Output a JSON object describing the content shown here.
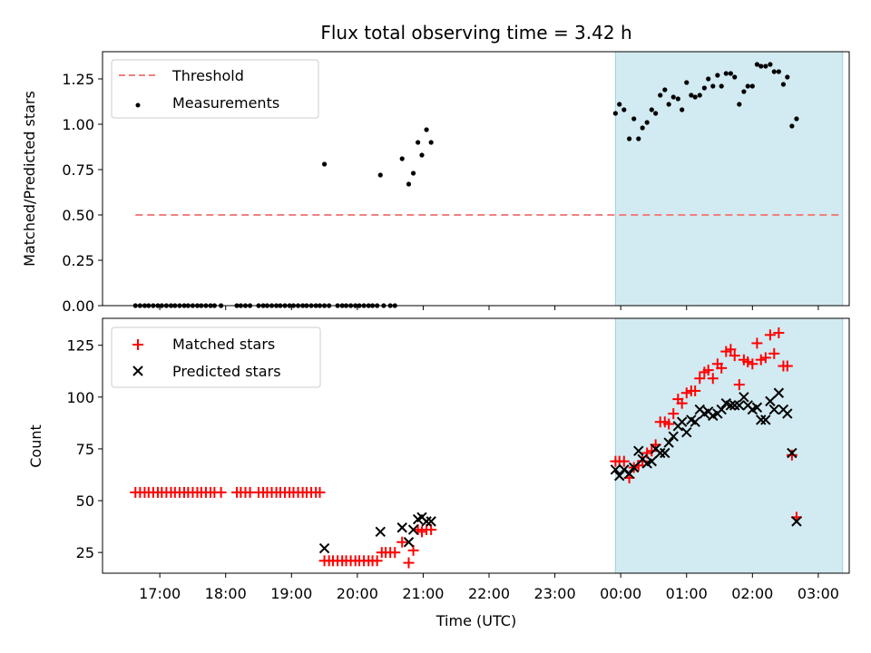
{
  "chart_data": [
    {
      "type": "scatter",
      "title": "Flux total observing time = 3.42 h",
      "xlabel": "",
      "ylabel": "Matched/Predicted stars",
      "xlim": [
        -0.87,
        10.47
      ],
      "ylim": [
        0,
        1.4
      ],
      "yticks": [
        0.0,
        0.25,
        0.5,
        0.75,
        1.0,
        1.25
      ],
      "ytick_labels": [
        "0.00",
        "0.25",
        "0.50",
        "0.75",
        "1.00",
        "1.25"
      ],
      "legend_position": "top-left",
      "highlight_span": {
        "start": 6.92,
        "end": 10.37,
        "color": "#add8e6"
      },
      "series": [
        {
          "name": "Threshold",
          "style": "dashed-line",
          "color": "#f08080",
          "points": [
            [
              -0.37,
              0.5
            ],
            [
              10.37,
              0.5
            ]
          ]
        },
        {
          "name": "Measurements",
          "style": "dot",
          "color": "#000000",
          "points": [
            [
              -0.37,
              0
            ],
            [
              -0.3,
              0
            ],
            [
              -0.23,
              0
            ],
            [
              -0.17,
              0
            ],
            [
              -0.1,
              0
            ],
            [
              -0.03,
              0
            ],
            [
              0.03,
              0
            ],
            [
              0.1,
              0
            ],
            [
              0.17,
              0
            ],
            [
              0.23,
              0
            ],
            [
              0.3,
              0
            ],
            [
              0.37,
              0
            ],
            [
              0.43,
              0
            ],
            [
              0.5,
              0
            ],
            [
              0.57,
              0
            ],
            [
              0.63,
              0
            ],
            [
              0.7,
              0
            ],
            [
              0.77,
              0
            ],
            [
              0.83,
              0
            ],
            [
              0.93,
              0
            ],
            [
              1.17,
              0
            ],
            [
              1.23,
              0
            ],
            [
              1.3,
              0
            ],
            [
              1.37,
              0
            ],
            [
              1.5,
              0
            ],
            [
              1.57,
              0
            ],
            [
              1.63,
              0
            ],
            [
              1.7,
              0
            ],
            [
              1.77,
              0
            ],
            [
              1.83,
              0
            ],
            [
              1.9,
              0
            ],
            [
              1.97,
              0
            ],
            [
              2.03,
              0
            ],
            [
              2.1,
              0
            ],
            [
              2.17,
              0
            ],
            [
              2.23,
              0
            ],
            [
              2.3,
              0
            ],
            [
              2.37,
              0
            ],
            [
              2.43,
              0
            ],
            [
              2.5,
              0
            ],
            [
              2.57,
              0
            ],
            [
              2.7,
              0
            ],
            [
              2.77,
              0
            ],
            [
              2.83,
              0
            ],
            [
              2.9,
              0
            ],
            [
              2.97,
              0
            ],
            [
              3.03,
              0
            ],
            [
              3.1,
              0
            ],
            [
              3.17,
              0
            ],
            [
              3.23,
              0
            ],
            [
              3.3,
              0
            ],
            [
              3.4,
              0
            ],
            [
              3.5,
              0
            ],
            [
              3.57,
              0
            ],
            [
              2.5,
              0.78
            ],
            [
              3.35,
              0.72
            ],
            [
              3.68,
              0.81
            ],
            [
              3.78,
              0.67
            ],
            [
              3.85,
              0.73
            ],
            [
              3.92,
              0.9
            ],
            [
              3.98,
              0.83
            ],
            [
              4.05,
              0.97
            ],
            [
              4.12,
              0.9
            ],
            [
              6.92,
              1.06
            ],
            [
              6.98,
              1.11
            ],
            [
              7.05,
              1.08
            ],
            [
              7.13,
              0.92
            ],
            [
              7.2,
              1.03
            ],
            [
              7.27,
              0.92
            ],
            [
              7.33,
              0.98
            ],
            [
              7.4,
              1.01
            ],
            [
              7.47,
              1.08
            ],
            [
              7.53,
              1.06
            ],
            [
              7.6,
              1.16
            ],
            [
              7.67,
              1.19
            ],
            [
              7.73,
              1.11
            ],
            [
              7.8,
              1.15
            ],
            [
              7.87,
              1.14
            ],
            [
              7.93,
              1.08
            ],
            [
              8.0,
              1.23
            ],
            [
              8.07,
              1.16
            ],
            [
              8.13,
              1.15
            ],
            [
              8.2,
              1.16
            ],
            [
              8.27,
              1.2
            ],
            [
              8.33,
              1.25
            ],
            [
              8.4,
              1.21
            ],
            [
              8.47,
              1.27
            ],
            [
              8.53,
              1.21
            ],
            [
              8.6,
              1.28
            ],
            [
              8.67,
              1.28
            ],
            [
              8.73,
              1.26
            ],
            [
              8.8,
              1.11
            ],
            [
              8.87,
              1.18
            ],
            [
              8.93,
              1.21
            ],
            [
              9.0,
              1.21
            ],
            [
              9.07,
              1.33
            ],
            [
              9.13,
              1.32
            ],
            [
              9.2,
              1.32
            ],
            [
              9.27,
              1.33
            ],
            [
              9.33,
              1.29
            ],
            [
              9.4,
              1.29
            ],
            [
              9.47,
              1.22
            ],
            [
              9.53,
              1.26
            ],
            [
              9.6,
              0.99
            ],
            [
              9.67,
              1.03
            ]
          ]
        }
      ]
    },
    {
      "type": "scatter",
      "title": "",
      "xlabel": "Time (UTC)",
      "ylabel": "Count",
      "xlim": [
        -0.87,
        10.47
      ],
      "ylim": [
        15,
        138
      ],
      "yticks": [
        25,
        50,
        75,
        100,
        125
      ],
      "ytick_labels": [
        "25",
        "50",
        "75",
        "100",
        "125"
      ],
      "xticks": [
        0,
        1,
        2,
        3,
        4,
        5,
        6,
        7,
        8,
        9,
        10
      ],
      "xtick_labels": [
        "17:00",
        "18:00",
        "19:00",
        "20:00",
        "21:00",
        "22:00",
        "23:00",
        "00:00",
        "01:00",
        "02:00",
        "03:00"
      ],
      "legend_position": "top-left",
      "highlight_span": {
        "start": 6.92,
        "end": 10.37,
        "color": "#add8e6"
      },
      "series": [
        {
          "name": "Matched stars",
          "marker": "plus",
          "color": "#ff0000",
          "points": [
            [
              -0.37,
              54
            ],
            [
              -0.3,
              54
            ],
            [
              -0.23,
              54
            ],
            [
              -0.17,
              54
            ],
            [
              -0.1,
              54
            ],
            [
              -0.03,
              54
            ],
            [
              0.03,
              54
            ],
            [
              0.1,
              54
            ],
            [
              0.17,
              54
            ],
            [
              0.23,
              54
            ],
            [
              0.3,
              54
            ],
            [
              0.37,
              54
            ],
            [
              0.43,
              54
            ],
            [
              0.5,
              54
            ],
            [
              0.57,
              54
            ],
            [
              0.63,
              54
            ],
            [
              0.7,
              54
            ],
            [
              0.77,
              54
            ],
            [
              0.83,
              54
            ],
            [
              0.93,
              54
            ],
            [
              1.17,
              54
            ],
            [
              1.23,
              54
            ],
            [
              1.3,
              54
            ],
            [
              1.37,
              54
            ],
            [
              1.5,
              54
            ],
            [
              1.57,
              54
            ],
            [
              1.63,
              54
            ],
            [
              1.7,
              54
            ],
            [
              1.77,
              54
            ],
            [
              1.83,
              54
            ],
            [
              1.9,
              54
            ],
            [
              1.97,
              54
            ],
            [
              2.03,
              54
            ],
            [
              2.1,
              54
            ],
            [
              2.17,
              54
            ],
            [
              2.23,
              54
            ],
            [
              2.3,
              54
            ],
            [
              2.37,
              54
            ],
            [
              2.43,
              54
            ],
            [
              2.5,
              21
            ],
            [
              2.57,
              21
            ],
            [
              2.63,
              21
            ],
            [
              2.7,
              21
            ],
            [
              2.77,
              21
            ],
            [
              2.83,
              21
            ],
            [
              2.9,
              21
            ],
            [
              2.97,
              21
            ],
            [
              3.03,
              21
            ],
            [
              3.1,
              21
            ],
            [
              3.17,
              21
            ],
            [
              3.23,
              21
            ],
            [
              3.3,
              21
            ],
            [
              3.37,
              25
            ],
            [
              3.43,
              25
            ],
            [
              3.5,
              25
            ],
            [
              3.57,
              25
            ],
            [
              3.68,
              30
            ],
            [
              3.78,
              20
            ],
            [
              3.85,
              26
            ],
            [
              3.92,
              36
            ],
            [
              3.98,
              35
            ],
            [
              4.05,
              36
            ],
            [
              4.12,
              36
            ],
            [
              6.92,
              69
            ],
            [
              6.98,
              69
            ],
            [
              7.05,
              69
            ],
            [
              7.13,
              61
            ],
            [
              7.2,
              66
            ],
            [
              7.27,
              67
            ],
            [
              7.33,
              69
            ],
            [
              7.4,
              73
            ],
            [
              7.47,
              74
            ],
            [
              7.53,
              77
            ],
            [
              7.6,
              88
            ],
            [
              7.67,
              88
            ],
            [
              7.73,
              87
            ],
            [
              7.8,
              92
            ],
            [
              7.87,
              99
            ],
            [
              7.93,
              97
            ],
            [
              8.0,
              102
            ],
            [
              8.07,
              103
            ],
            [
              8.13,
              103
            ],
            [
              8.2,
              109
            ],
            [
              8.27,
              112
            ],
            [
              8.33,
              113
            ],
            [
              8.4,
              109
            ],
            [
              8.47,
              116
            ],
            [
              8.53,
              114
            ],
            [
              8.6,
              122
            ],
            [
              8.67,
              123
            ],
            [
              8.73,
              120
            ],
            [
              8.8,
              106
            ],
            [
              8.87,
              118
            ],
            [
              8.93,
              117
            ],
            [
              9.0,
              116
            ],
            [
              9.07,
              126
            ],
            [
              9.13,
              118
            ],
            [
              9.2,
              119
            ],
            [
              9.27,
              130
            ],
            [
              9.33,
              121
            ],
            [
              9.4,
              131
            ],
            [
              9.47,
              115
            ],
            [
              9.53,
              115
            ],
            [
              9.6,
              72
            ],
            [
              9.67,
              42
            ]
          ]
        },
        {
          "name": "Predicted stars",
          "marker": "x",
          "color": "#000000",
          "points": [
            [
              2.5,
              27
            ],
            [
              3.35,
              35
            ],
            [
              3.68,
              37
            ],
            [
              3.78,
              30
            ],
            [
              3.85,
              36
            ],
            [
              3.92,
              41
            ],
            [
              3.98,
              42
            ],
            [
              4.05,
              40
            ],
            [
              4.12,
              40
            ],
            [
              6.92,
              65
            ],
            [
              6.98,
              62
            ],
            [
              7.05,
              65
            ],
            [
              7.13,
              63
            ],
            [
              7.2,
              66
            ],
            [
              7.27,
              74
            ],
            [
              7.33,
              70
            ],
            [
              7.4,
              68
            ],
            [
              7.47,
              69
            ],
            [
              7.53,
              75
            ],
            [
              7.6,
              73
            ],
            [
              7.67,
              73
            ],
            [
              7.73,
              78
            ],
            [
              7.8,
              81
            ],
            [
              7.87,
              86
            ],
            [
              7.93,
              88
            ],
            [
              8.0,
              83
            ],
            [
              8.07,
              89
            ],
            [
              8.13,
              88
            ],
            [
              8.2,
              94
            ],
            [
              8.27,
              92
            ],
            [
              8.33,
              93
            ],
            [
              8.4,
              91
            ],
            [
              8.47,
              92
            ],
            [
              8.53,
              94
            ],
            [
              8.6,
              97
            ],
            [
              8.67,
              96
            ],
            [
              8.73,
              96
            ],
            [
              8.8,
              96
            ],
            [
              8.87,
              100
            ],
            [
              8.93,
              96
            ],
            [
              9.0,
              94
            ],
            [
              9.07,
              95
            ],
            [
              9.13,
              89
            ],
            [
              9.2,
              89
            ],
            [
              9.27,
              98
            ],
            [
              9.33,
              94
            ],
            [
              9.4,
              102
            ],
            [
              9.47,
              94
            ],
            [
              9.53,
              92
            ],
            [
              9.6,
              73
            ],
            [
              9.67,
              40
            ]
          ]
        }
      ]
    }
  ]
}
